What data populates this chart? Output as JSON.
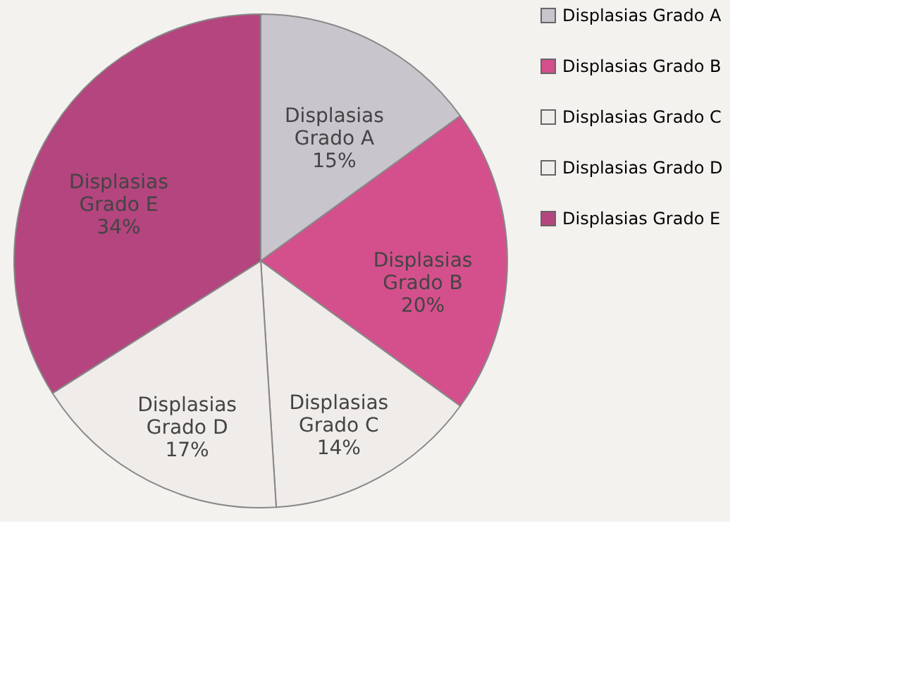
{
  "chart_data": {
    "type": "pie",
    "categories": [
      "Displasias Grado A",
      "Displasias Grado B",
      "Displasias Grado C",
      "Displasias Grado D",
      "Displasias Grado E"
    ],
    "values": [
      15,
      20,
      14,
      17,
      34
    ],
    "value_labels": [
      "15%",
      "20%",
      "14%",
      "17%",
      "34%"
    ],
    "colors": [
      "#c9c5cc",
      "#d4508c",
      "#f0ecea",
      "#f0ecea",
      "#b4457e"
    ],
    "legend": "right"
  }
}
